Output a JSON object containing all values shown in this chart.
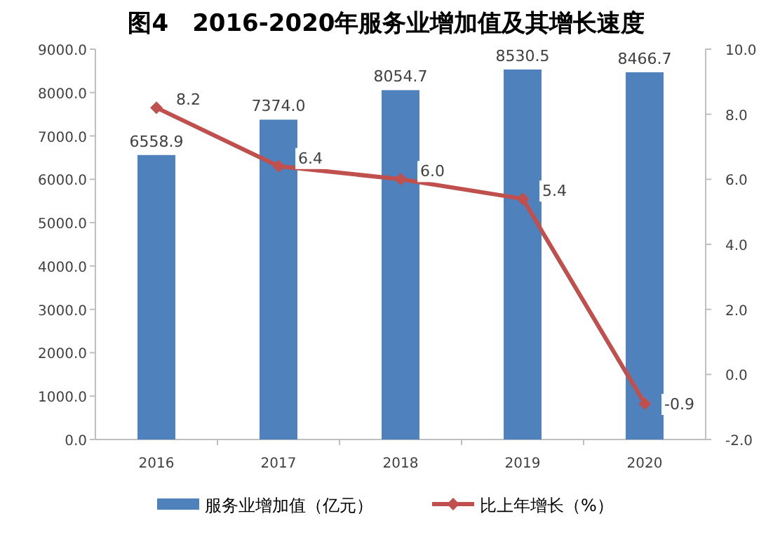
{
  "chart_data": {
    "type": "bar",
    "title": "图4　2016-2020年服务业增加值及其增长速度",
    "categories": [
      "2016",
      "2017",
      "2018",
      "2019",
      "2020"
    ],
    "series": [
      {
        "name": "服务业增加值（亿元）",
        "color": "#4f81bd",
        "values": [
          6558.9,
          7374.0,
          8054.7,
          8530.5,
          8466.7
        ],
        "value_labels": [
          "6558.9",
          "7374.0",
          "8054.7",
          "8530.5",
          "8466.7"
        ]
      },
      {
        "name": "比上年增长（%）",
        "type": "line",
        "axis": "y2",
        "color": "#c0504d",
        "marker": "diamond",
        "values": [
          8.2,
          6.4,
          6.0,
          5.4,
          -0.9
        ],
        "value_labels": [
          "8.2",
          "6.4",
          "6.0",
          "5.4",
          "-0.9"
        ]
      }
    ],
    "ylim": [
      0,
      9000
    ],
    "yticks": [
      {
        "value": 0,
        "label": "0.0"
      },
      {
        "value": 1000,
        "label": "1000.0"
      },
      {
        "value": 2000,
        "label": "2000.0"
      },
      {
        "value": 3000,
        "label": "3000.0"
      },
      {
        "value": 4000,
        "label": "4000.0"
      },
      {
        "value": 5000,
        "label": "5000.0"
      },
      {
        "value": 6000,
        "label": "6000.0"
      },
      {
        "value": 7000,
        "label": "7000.0"
      },
      {
        "value": 8000,
        "label": "8000.0"
      },
      {
        "value": 9000,
        "label": "9000.0"
      }
    ],
    "y2lim": [
      -2,
      10
    ],
    "y2ticks": [
      {
        "value": -2,
        "label": "-2.0"
      },
      {
        "value": 0,
        "label": "0.0"
      },
      {
        "value": 2,
        "label": "2.0"
      },
      {
        "value": 4,
        "label": "4.0"
      },
      {
        "value": 6,
        "label": "6.0"
      },
      {
        "value": 8,
        "label": "8.0"
      },
      {
        "value": 10,
        "label": "10.0"
      }
    ],
    "legend": "bottom",
    "grid": false
  }
}
